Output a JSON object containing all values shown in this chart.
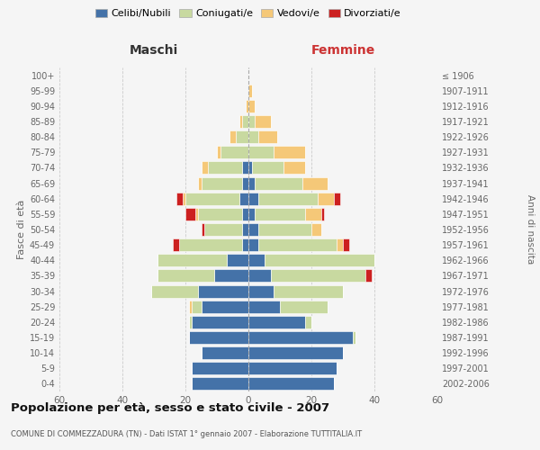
{
  "age_groups": [
    "0-4",
    "5-9",
    "10-14",
    "15-19",
    "20-24",
    "25-29",
    "30-34",
    "35-39",
    "40-44",
    "45-49",
    "50-54",
    "55-59",
    "60-64",
    "65-69",
    "70-74",
    "75-79",
    "80-84",
    "85-89",
    "90-94",
    "95-99",
    "100+"
  ],
  "birth_years": [
    "2002-2006",
    "1997-2001",
    "1992-1996",
    "1987-1991",
    "1982-1986",
    "1977-1981",
    "1972-1976",
    "1967-1971",
    "1962-1966",
    "1957-1961",
    "1952-1956",
    "1947-1951",
    "1942-1946",
    "1937-1941",
    "1932-1936",
    "1927-1931",
    "1922-1926",
    "1917-1921",
    "1912-1916",
    "1907-1911",
    "≤ 1906"
  ],
  "male": {
    "celibi": [
      18,
      18,
      15,
      19,
      18,
      15,
      16,
      11,
      7,
      2,
      2,
      2,
      3,
      2,
      2,
      0,
      0,
      0,
      0,
      0,
      0
    ],
    "coniugati": [
      0,
      0,
      0,
      0,
      1,
      3,
      15,
      18,
      22,
      20,
      12,
      14,
      17,
      13,
      11,
      9,
      4,
      2,
      0,
      0,
      0
    ],
    "vedovi": [
      0,
      0,
      0,
      0,
      0,
      1,
      0,
      0,
      0,
      0,
      0,
      1,
      1,
      1,
      2,
      1,
      2,
      1,
      1,
      0,
      0
    ],
    "divorziati": [
      0,
      0,
      0,
      0,
      0,
      0,
      0,
      0,
      0,
      2,
      1,
      3,
      2,
      0,
      0,
      0,
      0,
      0,
      0,
      0,
      0
    ]
  },
  "female": {
    "nubili": [
      27,
      28,
      30,
      33,
      18,
      10,
      8,
      7,
      5,
      3,
      3,
      2,
      3,
      2,
      1,
      0,
      0,
      0,
      0,
      0,
      0
    ],
    "coniugate": [
      0,
      0,
      0,
      1,
      2,
      15,
      22,
      30,
      35,
      25,
      17,
      16,
      19,
      15,
      10,
      8,
      3,
      2,
      0,
      0,
      0
    ],
    "vedove": [
      0,
      0,
      0,
      0,
      0,
      0,
      0,
      0,
      0,
      2,
      3,
      5,
      5,
      8,
      7,
      10,
      6,
      5,
      2,
      1,
      0
    ],
    "divorziate": [
      0,
      0,
      0,
      0,
      0,
      0,
      0,
      2,
      0,
      2,
      0,
      1,
      2,
      0,
      0,
      0,
      0,
      0,
      0,
      0,
      0
    ]
  },
  "colors": {
    "celibi": "#4472a8",
    "coniugati": "#c8d9a0",
    "vedovi": "#f5c878",
    "divorziati": "#cc2020"
  },
  "title": "Popolazione per età, sesso e stato civile - 2007",
  "subtitle": "COMUNE DI COMMEZZADURA (TN) - Dati ISTAT 1° gennaio 2007 - Elaborazione TUTTITALIA.IT",
  "xlabel_left": "Maschi",
  "xlabel_right": "Femmine",
  "ylabel_left": "Fasce di età",
  "ylabel_right": "Anni di nascita",
  "xlim": 60,
  "bg_color": "#f5f5f5",
  "grid_color": "#cccccc",
  "legend_labels": [
    "Celibi/Nubili",
    "Coniugati/e",
    "Vedovi/e",
    "Divorziati/e"
  ]
}
